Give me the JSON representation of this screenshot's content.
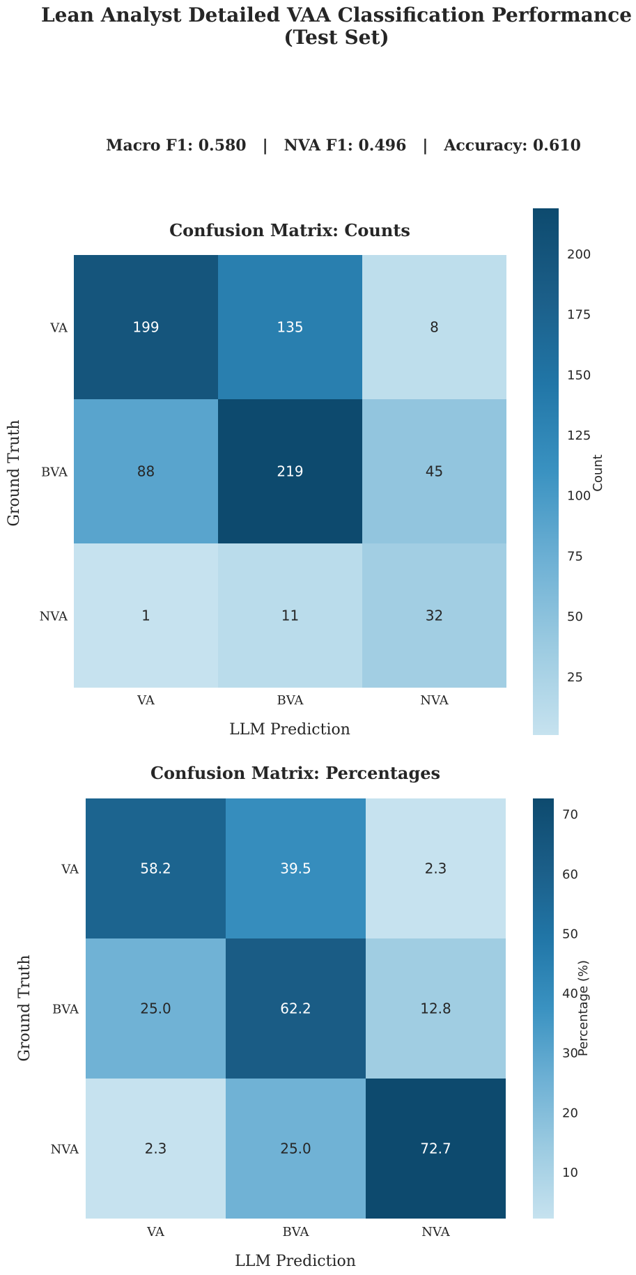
{
  "figure": {
    "title_line1": "Lean Analyst Detailed VAA Classification Performance",
    "title_line2": "(Test Set)",
    "metrics": "Macro F1: 0.580   |   NVA F1: 0.496   |   Accuracy: 0.610"
  },
  "colormap": [
    "#c6e2ef",
    "#9ccbe1",
    "#6db0d4",
    "#3a92c1",
    "#2176a7",
    "#1b5e88",
    "#0d4a6e"
  ],
  "chart_data": [
    {
      "type": "heatmap",
      "title": "Confusion Matrix: Counts",
      "xlabel": "LLM Prediction",
      "ylabel": "Ground Truth",
      "x_categories": [
        "VA",
        "BVA",
        "NVA"
      ],
      "y_categories": [
        "VA",
        "BVA",
        "NVA"
      ],
      "values": [
        [
          199,
          135,
          8
        ],
        [
          88,
          219,
          45
        ],
        [
          1,
          11,
          32
        ]
      ],
      "value_labels": [
        [
          "199",
          "135",
          "8"
        ],
        [
          "88",
          "219",
          "45"
        ],
        [
          "1",
          "11",
          "32"
        ]
      ],
      "colorbar": {
        "label": "Count",
        "vmin": 1,
        "vmax": 219,
        "ticks": [
          25,
          50,
          75,
          100,
          125,
          150,
          175,
          200
        ],
        "tick_labels": [
          "25",
          "50",
          "75",
          "100",
          "125",
          "150",
          "175",
          "200"
        ]
      }
    },
    {
      "type": "heatmap",
      "title": "Confusion Matrix: Percentages",
      "xlabel": "LLM Prediction",
      "ylabel": "Ground Truth",
      "x_categories": [
        "VA",
        "BVA",
        "NVA"
      ],
      "y_categories": [
        "VA",
        "BVA",
        "NVA"
      ],
      "values": [
        [
          58.2,
          39.5,
          2.3
        ],
        [
          25.0,
          62.2,
          12.8
        ],
        [
          2.3,
          25.0,
          72.7
        ]
      ],
      "value_labels": [
        [
          "58.2",
          "39.5",
          "2.3"
        ],
        [
          "25.0",
          "62.2",
          "12.8"
        ],
        [
          "2.3",
          "25.0",
          "72.7"
        ]
      ],
      "colorbar": {
        "label": "Percentage (%)",
        "vmin": 2.3,
        "vmax": 72.7,
        "ticks": [
          10,
          20,
          30,
          40,
          50,
          60,
          70
        ],
        "tick_labels": [
          "10",
          "20",
          "30",
          "40",
          "50",
          "60",
          "70"
        ]
      }
    }
  ]
}
